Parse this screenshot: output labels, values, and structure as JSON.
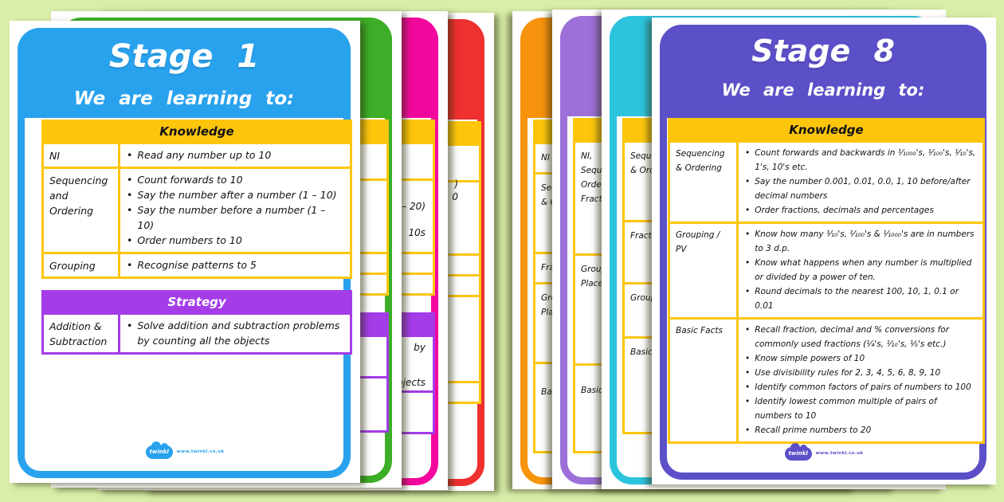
{
  "colors": {
    "background": "#d9efa9",
    "stage1_blue": "#29a2ee",
    "stage8_indigo": "#5b50c8",
    "table_yellow": "#fdc60d",
    "strategy_purple": "#a43ce8",
    "back_green": "#3cae27",
    "back_pink": "#f3089d",
    "back_red": "#ee3030",
    "back_orange": "#f7930c",
    "back_purple": "#9c70d8",
    "back_teal": "#2cc3dc"
  },
  "stage1": {
    "title": "Stage 1",
    "subtitle": "We are learning to:",
    "knowledge_header": "Knowledge",
    "strategy_header": "Strategy",
    "knowledge_rows": [
      {
        "label": "NI",
        "bullets": [
          "Read any number up to 10"
        ]
      },
      {
        "label": "Sequencing and Ordering",
        "bullets": [
          "Count forwards to 10",
          "Say the number after a number (1 – 10)",
          "Say the number before a number (1 – 10)",
          "Order numbers to 10"
        ]
      },
      {
        "label": "Grouping",
        "bullets": [
          "Recognise patterns to 5"
        ]
      }
    ],
    "strategy_rows": [
      {
        "label": "Addition & Subtraction",
        "bullets": [
          "Solve addition and subtraction problems by counting all the objects"
        ]
      }
    ],
    "brand": "twinkl",
    "footer_url": "www.twinkl.co.uk"
  },
  "stage8": {
    "title": "Stage 8",
    "subtitle": "We are learning to:",
    "knowledge_header": "Knowledge",
    "knowledge_rows": [
      {
        "label": "Sequencing & Ordering",
        "bullets": [
          "Count forwards and backwards in ¹⁄₁₀₀₀'s, ¹⁄₁₀₀'s, ¹⁄₁₀'s, 1's, 10's etc.",
          "Say the number 0.001, 0.01, 0.0, 1, 10 before/after decimal numbers",
          "Order fractions, decimals and percentages"
        ]
      },
      {
        "label": "Grouping / PV",
        "bullets": [
          "Know how many ¹⁄₁₀'s, ¹⁄₁₀₀'s & ¹⁄₁₀₀₀'s are in numbers to 3 d.p.",
          "Know what happens when any number is multiplied or divided by a power of ten.",
          "Round decimals to the nearest 100, 10, 1, 0.1 or 0.01"
        ]
      },
      {
        "label": "Basic Facts",
        "bullets": [
          "Recall fraction, decimal and % conversions for commonly used fractions (¼'s, ¹⁄₁₀'s, ⅕'s etc.)",
          "Know simple powers of 10",
          "Use divisibility rules for 2, 3, 4, 5, 6, 8, 9, 10",
          "Identify common factors of pairs of numbers to 100",
          "Identify lowest common multiple of pairs of numbers to 10",
          "Recall prime numbers to 20"
        ]
      }
    ],
    "brand": "twinkl",
    "footer_url": "www.twinkl.co.uk"
  },
  "backs": {
    "green": {
      "k_rows": [
        {},
        {},
        {},
        {}
      ],
      "s_rows": [
        {},
        {}
      ]
    },
    "pink": {
      "k_rows": [
        {},
        {},
        {},
        {}
      ],
      "s_rows": [
        {},
        {}
      ],
      "fragments": {
        "f1": "– 20)",
        "f2": "10s",
        "f3": "by",
        "f4": "objects"
      }
    },
    "red": {
      "k_rows": [
        {},
        {},
        {},
        {},
        {},
        {}
      ],
      "fragments": {
        "f1": ")",
        "f2": "0"
      }
    },
    "orange": {
      "rows": [
        {
          "label": "NI"
        },
        {
          "label": "Sequencing & Ordering"
        },
        {
          "label": "Fractions"
        },
        {
          "label": "Grouping / Place Value"
        },
        {
          "label": "Basic Facts"
        }
      ]
    },
    "purple": {
      "rows": [
        {
          "label": "NI, Sequencing, Ordering & Fractions"
        },
        {
          "label": "Grouping / Place Value"
        },
        {
          "label": "Basic Facts"
        }
      ]
    },
    "teal": {
      "rows": [
        {
          "label": "Sequencing & Ordering"
        },
        {
          "label": "Fractions"
        },
        {
          "label": "Grouping"
        },
        {
          "label": "Basic Facts"
        }
      ]
    }
  }
}
